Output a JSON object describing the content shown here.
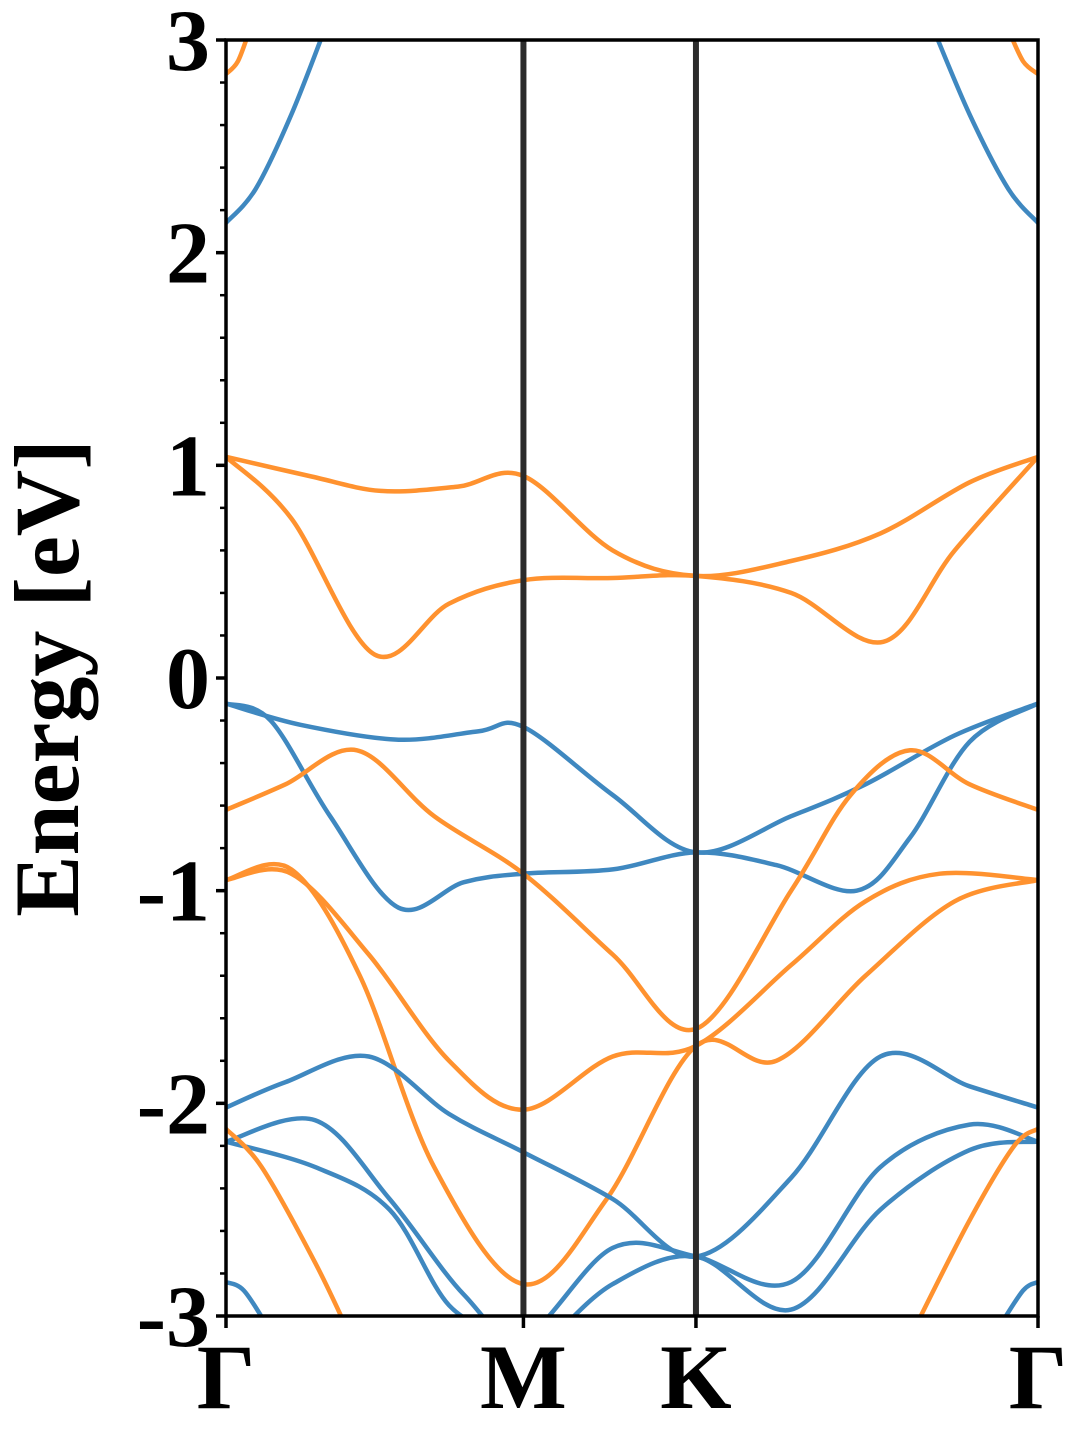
{
  "chart_data": {
    "type": "line",
    "title": "",
    "xlabel": "",
    "ylabel": "Energy [eV]",
    "ylim": [
      -3,
      3
    ],
    "yticks": [
      -3,
      -2,
      -1,
      0,
      1,
      2,
      3
    ],
    "ytick_labels": [
      "-3",
      "-2",
      "-1",
      "0",
      "1",
      "2",
      "3"
    ],
    "xlim": [
      0,
      2.73
    ],
    "high_symmetry_points": [
      {
        "label": "Γ",
        "x": 0
      },
      {
        "label": "M",
        "x": 1.0
      },
      {
        "label": "K",
        "x": 1.58
      },
      {
        "label": "Γ",
        "x": 2.73
      }
    ],
    "grid": false,
    "legend": "none",
    "colors": {
      "blue": "#3f88c0",
      "orange": "#ff922f",
      "divider": "#2b2b2b"
    },
    "series": [
      {
        "color": "blue",
        "x": [
          0,
          0.25,
          0.58,
          0.85,
          1.0,
          1.3,
          1.58,
          1.9,
          2.15,
          2.45,
          2.73
        ],
        "y": [
          -0.12,
          -0.22,
          -0.29,
          -0.25,
          -0.23,
          -0.55,
          -0.82,
          -0.65,
          -0.5,
          -0.27,
          -0.12
        ]
      },
      {
        "color": "blue",
        "x": [
          0,
          0.15,
          0.35,
          0.58,
          0.8,
          1.0,
          1.3,
          1.58,
          1.85,
          2.12,
          2.3,
          2.5,
          2.73
        ],
        "y": [
          -0.12,
          -0.2,
          -0.65,
          -1.08,
          -0.96,
          -0.92,
          -0.9,
          -0.82,
          -0.88,
          -1.0,
          -0.75,
          -0.3,
          -0.12
        ]
      },
      {
        "color": "orange",
        "x": [
          0,
          0.28,
          0.52,
          0.78,
          1.0,
          1.3,
          1.58,
          1.9,
          2.2,
          2.5,
          2.73
        ],
        "y": [
          1.04,
          0.95,
          0.88,
          0.9,
          0.95,
          0.6,
          0.48,
          0.55,
          0.68,
          0.92,
          1.04
        ]
      },
      {
        "color": "orange",
        "x": [
          0,
          0.22,
          0.5,
          0.75,
          1.0,
          1.3,
          1.58,
          1.9,
          2.21,
          2.45,
          2.73
        ],
        "y": [
          1.04,
          0.75,
          0.11,
          0.35,
          0.46,
          0.47,
          0.48,
          0.4,
          0.17,
          0.6,
          1.04
        ]
      },
      {
        "color": "orange",
        "x": [
          0,
          0.2,
          0.44,
          0.7,
          1.0,
          1.3,
          1.58,
          1.9,
          2.1,
          2.3,
          2.5,
          2.73
        ],
        "y": [
          -0.62,
          -0.5,
          -0.34,
          -0.65,
          -0.92,
          -1.3,
          -1.65,
          -1.0,
          -0.55,
          -0.34,
          -0.5,
          -0.62
        ]
      },
      {
        "color": "orange",
        "x": [
          0,
          0.22,
          0.48,
          0.75,
          1.0,
          1.3,
          1.58,
          1.9,
          2.15,
          2.4,
          2.73
        ],
        "y": [
          -0.95,
          -0.92,
          -1.3,
          -1.8,
          -2.03,
          -1.78,
          -1.73,
          -1.35,
          -1.05,
          -0.92,
          -0.95
        ]
      },
      {
        "color": "orange",
        "x": [
          0,
          0.22,
          0.45,
          0.7,
          1.0,
          1.28,
          1.58,
          1.85,
          2.15,
          2.45,
          2.73
        ],
        "y": [
          -0.95,
          -0.9,
          -1.4,
          -2.3,
          -2.85,
          -2.45,
          -1.73,
          -1.8,
          -1.4,
          -1.05,
          -0.95
        ]
      },
      {
        "color": "blue",
        "x": [
          0,
          0.2,
          0.48,
          0.75,
          1.0,
          1.3,
          1.58,
          1.9,
          2.2,
          2.5,
          2.73
        ],
        "y": [
          -2.02,
          -1.9,
          -1.78,
          -2.05,
          -2.23,
          -2.45,
          -2.72,
          -2.35,
          -1.78,
          -1.92,
          -2.02
        ]
      },
      {
        "color": "blue",
        "x": [
          0,
          0.3,
          0.55,
          0.8,
          1.0,
          1.3,
          1.58,
          1.9,
          2.2,
          2.5,
          2.73
        ],
        "y": [
          -2.18,
          -2.08,
          -2.45,
          -2.9,
          -3.1,
          -2.68,
          -2.72,
          -2.84,
          -2.3,
          -2.1,
          -2.18
        ]
      },
      {
        "color": "blue",
        "x": [
          0,
          0.3,
          0.55,
          0.75,
          0.95
        ],
        "y": [
          -2.18,
          -2.3,
          -2.5,
          -2.95,
          -3.1
        ]
      },
      {
        "color": "blue",
        "x": [
          1.1,
          1.3,
          1.58,
          1.9,
          2.2,
          2.5,
          2.73
        ],
        "y": [
          -3.1,
          -2.85,
          -2.72,
          -2.97,
          -2.5,
          -2.22,
          -2.18
        ]
      },
      {
        "color": "orange",
        "x": [
          0,
          0.12,
          0.3,
          0.42
        ],
        "y": [
          -2.12,
          -2.3,
          -2.75,
          -3.1
        ]
      },
      {
        "color": "orange",
        "x": [
          2.3,
          2.5,
          2.65,
          2.73
        ],
        "y": [
          -3.1,
          -2.55,
          -2.2,
          -2.12
        ]
      },
      {
        "color": "blue",
        "x": [
          0,
          0.06,
          0.14
        ],
        "y": [
          -2.84,
          -2.88,
          -3.05
        ]
      },
      {
        "color": "blue",
        "x": [
          2.6,
          2.68,
          2.73
        ],
        "y": [
          -3.05,
          -2.88,
          -2.84
        ]
      },
      {
        "color": "blue",
        "x": [
          0,
          0.1,
          0.22,
          0.34
        ],
        "y": [
          2.14,
          2.3,
          2.65,
          3.08
        ]
      },
      {
        "color": "blue",
        "x": [
          2.37,
          2.5,
          2.63,
          2.73
        ],
        "y": [
          3.08,
          2.65,
          2.3,
          2.14
        ]
      },
      {
        "color": "orange",
        "x": [
          0,
          0.04,
          0.08
        ],
        "y": [
          2.84,
          2.9,
          3.05
        ]
      },
      {
        "color": "orange",
        "x": [
          2.63,
          2.68,
          2.73
        ],
        "y": [
          3.05,
          2.9,
          2.84
        ]
      }
    ]
  }
}
